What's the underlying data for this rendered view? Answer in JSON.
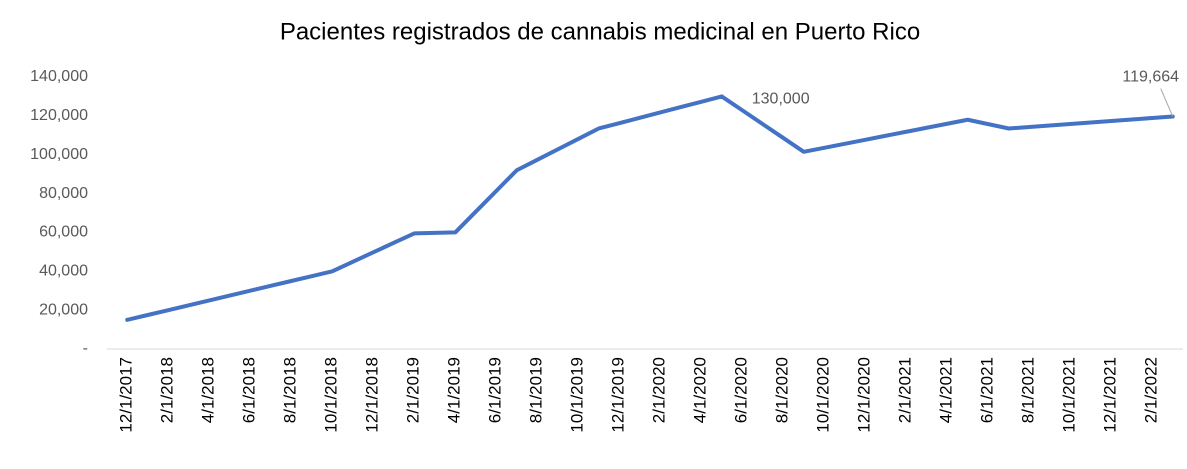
{
  "chart_data": {
    "type": "line",
    "title": "Pacientes registrados de cannabis medicinal en Puerto Rico",
    "categories": [
      "12/1/2017",
      null,
      "2/1/2018",
      null,
      "4/1/2018",
      null,
      "6/1/2018",
      null,
      "8/1/2018",
      null,
      "10/1/2018",
      null,
      "12/1/2018",
      null,
      "2/1/2019",
      null,
      "4/1/2019",
      null,
      "6/1/2019",
      null,
      "8/1/2019",
      null,
      "10/1/2019",
      null,
      "12/1/2019",
      null,
      "2/1/2020",
      null,
      "4/1/2020",
      null,
      "6/1/2020",
      null,
      "8/1/2020",
      null,
      "10/1/2020",
      null,
      "12/1/2020",
      null,
      "2/1/2021",
      null,
      "4/1/2021",
      null,
      "6/1/2021",
      null,
      "8/1/2021",
      null,
      "10/1/2021",
      null,
      "12/1/2021",
      null,
      "2/1/2022",
      null
    ],
    "values": [
      15000,
      17500,
      20000,
      22500,
      25000,
      27500,
      30000,
      32500,
      35000,
      37500,
      40000,
      44875,
      49750,
      54625,
      59500,
      59750,
      60000,
      70667,
      81333,
      92000,
      97375,
      102750,
      108125,
      113500,
      116250,
      119000,
      121750,
      124500,
      127250,
      130000,
      122875,
      115750,
      108625,
      101500,
      103563,
      105625,
      107688,
      109750,
      111813,
      113875,
      115938,
      118000,
      115750,
      113500,
      114271,
      115041,
      115812,
      116582,
      117352,
      118123,
      118893,
      119664
    ],
    "value_labels": [
      null,
      null,
      null,
      null,
      null,
      null,
      null,
      null,
      null,
      null,
      null,
      null,
      null,
      null,
      null,
      null,
      null,
      null,
      null,
      null,
      null,
      null,
      null,
      null,
      null,
      null,
      null,
      null,
      null,
      "130,000",
      null,
      null,
      null,
      null,
      null,
      null,
      null,
      null,
      null,
      null,
      null,
      null,
      null,
      null,
      null,
      null,
      null,
      null,
      null,
      null,
      null,
      "119,664"
    ],
    "color": "#4472c4",
    "ylim": [
      0,
      140000
    ],
    "yticks": [
      {
        "value": 0,
        "label": "-"
      },
      {
        "value": 20000,
        "label": "20,000"
      },
      {
        "value": 40000,
        "label": "40,000"
      },
      {
        "value": 60000,
        "label": "60,000"
      },
      {
        "value": 80000,
        "label": "80,000"
      },
      {
        "value": 100000,
        "label": "100,000"
      },
      {
        "value": 120000,
        "label": "120,000"
      },
      {
        "value": 140000,
        "label": "140,000"
      }
    ],
    "grid": false
  }
}
